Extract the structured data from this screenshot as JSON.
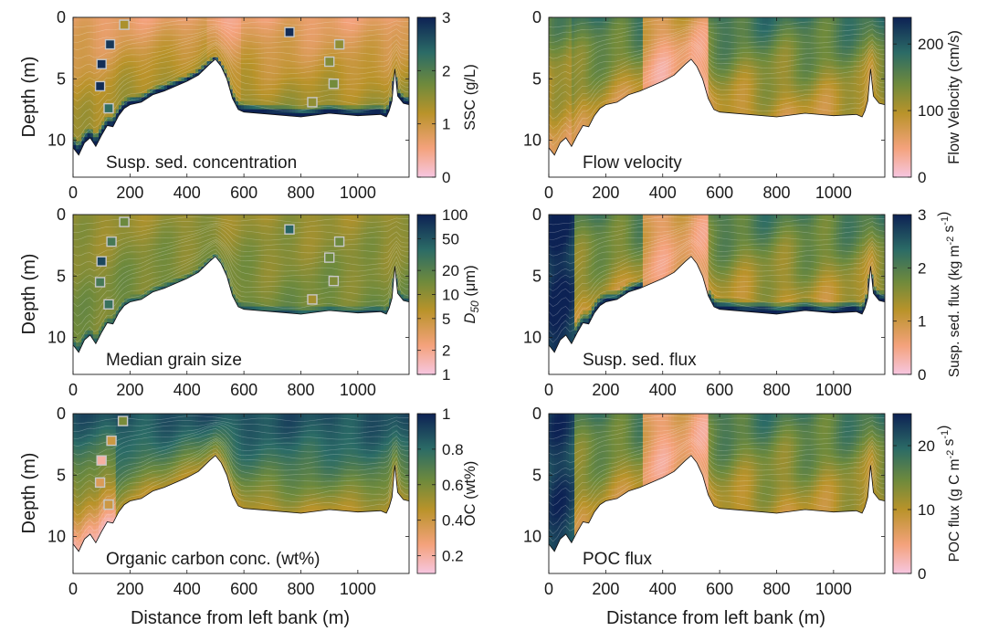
{
  "figure": {
    "xlabel": "Distance from left bank (m)",
    "ylabel": "Depth (m)",
    "x_ticks": [
      0,
      200,
      400,
      600,
      800,
      1000
    ],
    "y_ticks": [
      0,
      5,
      10
    ],
    "xlim": [
      0,
      1180
    ],
    "ylim": [
      0,
      13
    ]
  },
  "bed_profile": {
    "x": [
      0,
      20,
      40,
      60,
      80,
      100,
      120,
      140,
      160,
      180,
      200,
      240,
      280,
      320,
      360,
      400,
      440,
      480,
      500,
      520,
      540,
      560,
      580,
      600,
      700,
      800,
      900,
      1000,
      1080,
      1100,
      1110,
      1120,
      1130,
      1140,
      1160,
      1180
    ],
    "depth": [
      10.6,
      11.2,
      10.2,
      9.8,
      10.5,
      9.6,
      8.8,
      8.9,
      8.0,
      7.4,
      7.1,
      6.9,
      6.3,
      6.0,
      5.6,
      5.2,
      4.7,
      3.8,
      3.4,
      4.0,
      5.0,
      6.6,
      7.5,
      7.7,
      7.9,
      8.1,
      7.8,
      8.0,
      7.9,
      8.1,
      7.6,
      6.8,
      4.2,
      6.4,
      7.0,
      7.1
    ]
  },
  "chart_data": [
    {
      "type": "heatmap",
      "title": "Susp. sed. concentration",
      "colorbar_label": "SSC (g/L)",
      "colorbar_ticks": [
        "0",
        "1",
        "2",
        "3"
      ],
      "clim": [
        0,
        3
      ],
      "samples": [
        {
          "x": 180,
          "depth": 0.6,
          "value": 1.3
        },
        {
          "x": 130,
          "depth": 2.2,
          "value": 2.8
        },
        {
          "x": 100,
          "depth": 3.8,
          "value": 2.9
        },
        {
          "x": 95,
          "depth": 5.6,
          "value": 2.9
        },
        {
          "x": 125,
          "depth": 7.4,
          "value": 2.3
        },
        {
          "x": 760,
          "depth": 1.2,
          "value": 2.9
        },
        {
          "x": 935,
          "depth": 2.2,
          "value": 1.5
        },
        {
          "x": 900,
          "depth": 3.6,
          "value": 1.6
        },
        {
          "x": 915,
          "depth": 5.4,
          "value": 1.7
        },
        {
          "x": 840,
          "depth": 6.9,
          "value": 1.5
        }
      ]
    },
    {
      "type": "heatmap",
      "title": "Flow velocity",
      "colorbar_label": "Flow Velocity (cm/s)",
      "colorbar_ticks": [
        "0",
        "100",
        "200"
      ],
      "clim": [
        0,
        240
      ],
      "samples": []
    },
    {
      "type": "heatmap",
      "title": "Median grain size",
      "colorbar_label": "D50 (μm)",
      "colorbar_ticks": [
        "1",
        "2",
        "5",
        "10",
        "20",
        "50",
        "100"
      ],
      "clim": [
        1,
        100
      ],
      "log_scale": true,
      "samples": [
        {
          "x": 180,
          "depth": 0.6,
          "value": 15
        },
        {
          "x": 135,
          "depth": 2.2,
          "value": 25
        },
        {
          "x": 100,
          "depth": 3.8,
          "value": 60
        },
        {
          "x": 95,
          "depth": 5.5,
          "value": 25
        },
        {
          "x": 125,
          "depth": 7.3,
          "value": 30
        },
        {
          "x": 760,
          "depth": 1.2,
          "value": 40
        },
        {
          "x": 935,
          "depth": 2.2,
          "value": 15
        },
        {
          "x": 900,
          "depth": 3.5,
          "value": 15
        },
        {
          "x": 915,
          "depth": 5.4,
          "value": 12
        },
        {
          "x": 840,
          "depth": 6.9,
          "value": 8
        }
      ]
    },
    {
      "type": "heatmap",
      "title": "Susp. sed. flux",
      "colorbar_label": "Susp. sed. flux (kg m⁻² s⁻¹)",
      "colorbar_ticks": [
        "0",
        "1",
        "2",
        "3"
      ],
      "clim": [
        0,
        3
      ],
      "samples": []
    },
    {
      "type": "heatmap",
      "title": "Organic carbon conc. (wt%)",
      "colorbar_label": "OC (wt%)",
      "colorbar_ticks": [
        "0.2",
        "0.4",
        "0.6",
        "0.8",
        "1"
      ],
      "clim": [
        0.1,
        1
      ],
      "samples": [
        {
          "x": 175,
          "depth": 0.6,
          "value": 0.6
        },
        {
          "x": 135,
          "depth": 2.2,
          "value": 0.4
        },
        {
          "x": 100,
          "depth": 3.8,
          "value": 0.2
        },
        {
          "x": 95,
          "depth": 5.6,
          "value": 0.35
        },
        {
          "x": 125,
          "depth": 7.4,
          "value": 0.4
        }
      ]
    },
    {
      "type": "heatmap",
      "title": "POC flux",
      "colorbar_label": "POC flux (g C m⁻² s⁻¹)",
      "colorbar_ticks": [
        "0",
        "10",
        "20"
      ],
      "clim": [
        0,
        25
      ],
      "samples": []
    }
  ],
  "colors": {
    "low": "#f6c6e0",
    "mid_low": "#f4a27c",
    "mid": "#b9932a",
    "mid_high": "#6f8a3c",
    "high_teal": "#2b6b66",
    "high": "#0d2254",
    "contour": "#ffffff",
    "axis": "#1a1a1a"
  }
}
